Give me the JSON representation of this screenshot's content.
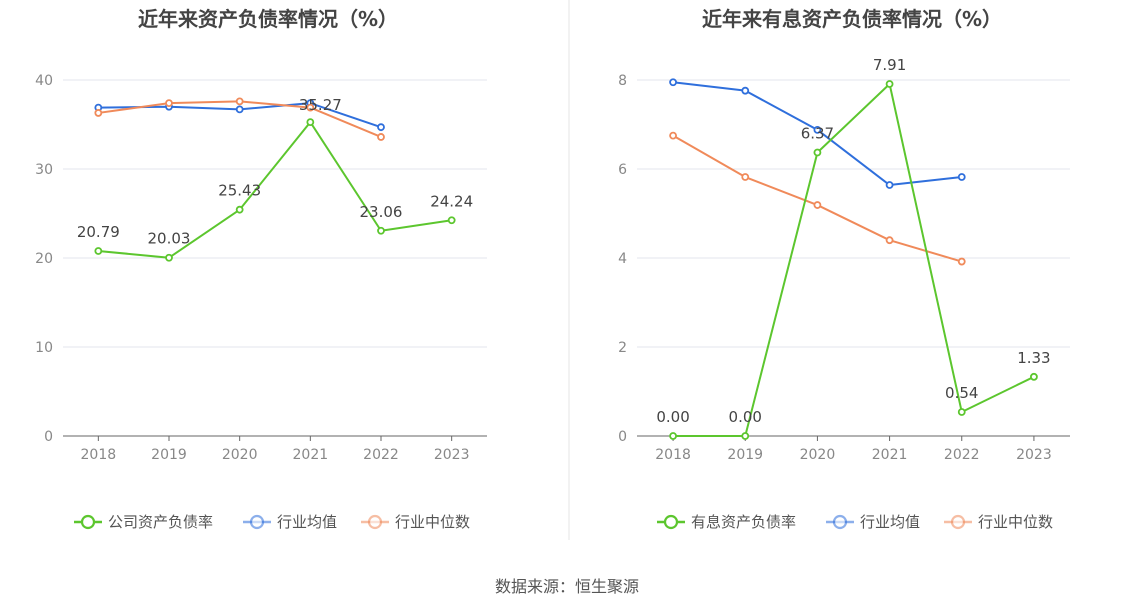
{
  "source": "数据来源：恒生聚源",
  "colors": {
    "company": "#5cc62e",
    "avg": "#2f6fdc",
    "median": "#f08a5a",
    "axis": "#666666",
    "grid": "#e3e6ee",
    "tick_text": "#888888",
    "title": "#444444",
    "divider": "#e6e6e6"
  },
  "chart_data": [
    {
      "type": "line",
      "title": "近年来资产负债率情况（%）",
      "x": [
        "2018",
        "2019",
        "2020",
        "2021",
        "2022",
        "2023"
      ],
      "ylim": [
        0,
        40
      ],
      "yticks": [
        0,
        10,
        20,
        30,
        40
      ],
      "grid": true,
      "legend_position": "bottom",
      "series": [
        {
          "name": "公司资产负债率",
          "key": "company",
          "values": [
            20.79,
            20.03,
            25.43,
            35.27,
            23.06,
            24.24
          ],
          "labels": [
            "20.79",
            "20.03",
            "25.43",
            "35.27",
            "23.06",
            "24.24"
          ]
        },
        {
          "name": "行业均值",
          "key": "avg",
          "values": [
            36.9,
            37.0,
            36.7,
            37.4,
            34.7,
            null
          ]
        },
        {
          "name": "行业中位数",
          "key": "median",
          "values": [
            36.3,
            37.4,
            37.6,
            36.9,
            33.6,
            null
          ]
        }
      ]
    },
    {
      "type": "line",
      "title": "近年来有息资产负债率情况（%）",
      "x": [
        "2018",
        "2019",
        "2020",
        "2021",
        "2022",
        "2023"
      ],
      "ylim": [
        0,
        8
      ],
      "yticks": [
        0,
        2,
        4,
        6,
        8
      ],
      "grid": true,
      "legend_position": "bottom",
      "series": [
        {
          "name": "有息资产负债率",
          "key": "company",
          "values": [
            0.0,
            0.0,
            6.37,
            7.91,
            0.54,
            1.33
          ],
          "labels": [
            "0.00",
            "0.00",
            "6.37",
            "7.91",
            "0.54",
            "1.33"
          ]
        },
        {
          "name": "行业均值",
          "key": "avg",
          "values": [
            7.95,
            7.76,
            6.88,
            5.64,
            5.82,
            null
          ]
        },
        {
          "name": "行业中位数",
          "key": "median",
          "values": [
            6.75,
            5.82,
            5.19,
            4.4,
            3.92,
            null
          ]
        }
      ]
    }
  ]
}
